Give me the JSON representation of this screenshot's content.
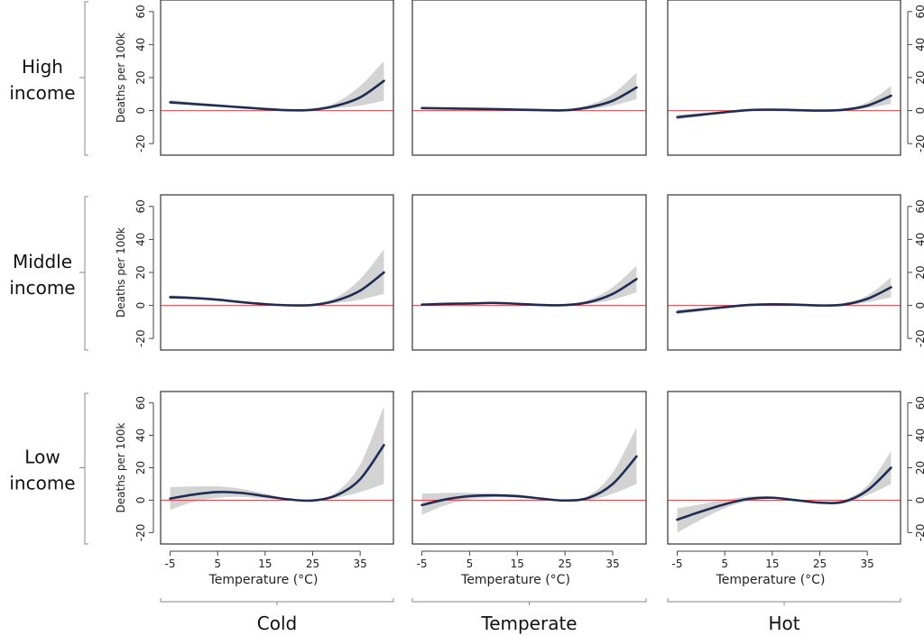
{
  "chart_data": {
    "type": "line",
    "layout": "3x3 small multiples",
    "rows": [
      "High income",
      "Middle income",
      "Low income"
    ],
    "row_label_lines": [
      [
        "High",
        "income"
      ],
      [
        "Middle",
        "income"
      ],
      [
        "Low",
        "income"
      ]
    ],
    "columns": [
      "Cold",
      "Temperate",
      "Hot"
    ],
    "xlabel": "Temperature (°C)",
    "ylabel": "Deaths per 100k",
    "x_ticks": [
      -5,
      5,
      15,
      25,
      35
    ],
    "y_ticks": [
      -20,
      0,
      20,
      40,
      60
    ],
    "xlim": [
      -7,
      42
    ],
    "ylim": [
      -27,
      67
    ],
    "reference_line": {
      "y": 0,
      "color": "#e8454a"
    },
    "colors": {
      "mean": "#1f2d52",
      "ci": "#d3d3d3"
    },
    "x": [
      -5,
      0,
      5,
      10,
      15,
      20,
      25,
      30,
      35,
      40
    ],
    "panels": [
      {
        "row": "High income",
        "column": "Cold",
        "mean": [
          5,
          4,
          3,
          2,
          1,
          0.2,
          0.5,
          3,
          8,
          18
        ],
        "lower": [
          4,
          3.2,
          2.3,
          1.4,
          0.5,
          -0.3,
          0,
          1.5,
          3,
          6
        ],
        "upper": [
          6.5,
          5,
          3.8,
          2.6,
          1.5,
          0.7,
          1.2,
          5,
          15,
          30
        ]
      },
      {
        "row": "High income",
        "column": "Temperate",
        "mean": [
          1.5,
          1.3,
          1.1,
          0.9,
          0.6,
          0.3,
          0.2,
          2,
          6,
          14
        ],
        "lower": [
          0.8,
          0.8,
          0.7,
          0.5,
          0.2,
          -0.1,
          -0.2,
          0.8,
          3,
          7
        ],
        "upper": [
          2.3,
          1.9,
          1.6,
          1.3,
          1,
          0.7,
          0.7,
          3.5,
          10,
          23
        ]
      },
      {
        "row": "High income",
        "column": "Hot",
        "mean": [
          -4,
          -2.5,
          -1,
          0.3,
          0.6,
          0.3,
          0,
          0.5,
          3,
          9
        ],
        "lower": [
          -5.5,
          -3.5,
          -1.8,
          -0.3,
          0.2,
          0,
          -0.4,
          -0.2,
          1.5,
          4
        ],
        "upper": [
          -2.5,
          -1.5,
          -0.2,
          0.9,
          1,
          0.7,
          0.5,
          1.3,
          5,
          15
        ]
      },
      {
        "row": "Middle income",
        "column": "Cold",
        "mean": [
          5,
          4.5,
          3.5,
          2,
          0.8,
          0.1,
          0.3,
          3,
          9,
          20
        ],
        "lower": [
          4,
          3.7,
          2.8,
          1.4,
          0.3,
          -0.3,
          -0.2,
          1.5,
          3.5,
          7
        ],
        "upper": [
          6.3,
          5.3,
          4.2,
          2.6,
          1.3,
          0.6,
          1,
          5,
          16,
          34
        ]
      },
      {
        "row": "Middle income",
        "column": "Temperate",
        "mean": [
          0.5,
          1,
          1.2,
          1.5,
          1,
          0.3,
          0.2,
          2,
          7,
          16
        ],
        "lower": [
          -0.3,
          0.4,
          0.7,
          1,
          0.6,
          0,
          -0.2,
          1,
          3.5,
          8
        ],
        "upper": [
          1.3,
          1.6,
          1.8,
          2,
          1.5,
          0.7,
          0.7,
          3.5,
          11,
          24
        ]
      },
      {
        "row": "Middle income",
        "column": "Hot",
        "mean": [
          -4,
          -2.5,
          -1,
          0.3,
          0.7,
          0.5,
          0,
          0.5,
          4,
          11
        ],
        "lower": [
          -5.5,
          -3.5,
          -1.8,
          -0.2,
          0.3,
          0.1,
          -0.4,
          -0.2,
          2,
          5
        ],
        "upper": [
          -2.5,
          -1.5,
          -0.2,
          0.8,
          1.1,
          0.9,
          0.5,
          1.4,
          6,
          17
        ]
      },
      {
        "row": "Low income",
        "column": "Cold",
        "mean": [
          1,
          3.5,
          5,
          4.5,
          2.5,
          0.5,
          -0.2,
          3,
          13,
          34
        ],
        "lower": [
          -6,
          -1,
          1.5,
          2,
          1,
          0,
          -0.5,
          1.5,
          5,
          10
        ],
        "upper": [
          8,
          8.5,
          8.5,
          7,
          4,
          1,
          0.3,
          5,
          22,
          58
        ]
      },
      {
        "row": "Low income",
        "column": "Temperate",
        "mean": [
          -3,
          0.5,
          2.5,
          3,
          2.5,
          1,
          -0.2,
          1.5,
          10,
          27
        ],
        "lower": [
          -9,
          -3,
          0.5,
          1.8,
          1.5,
          0.5,
          -0.6,
          0,
          4,
          10
        ],
        "upper": [
          4,
          4.5,
          4.5,
          4,
          3.3,
          1.5,
          0.3,
          3,
          17,
          45
        ]
      },
      {
        "row": "Low income",
        "column": "Hot",
        "mean": [
          -12,
          -7,
          -2.5,
          0.8,
          1.5,
          0,
          -1.5,
          -1,
          6,
          20
        ],
        "lower": [
          -20,
          -12,
          -5,
          -0.5,
          0.8,
          -0.6,
          -2.2,
          -2,
          3,
          10
        ],
        "upper": [
          -5,
          -2.5,
          0.3,
          2.2,
          2.3,
          0.7,
          -0.8,
          0.2,
          9,
          30
        ]
      }
    ]
  }
}
